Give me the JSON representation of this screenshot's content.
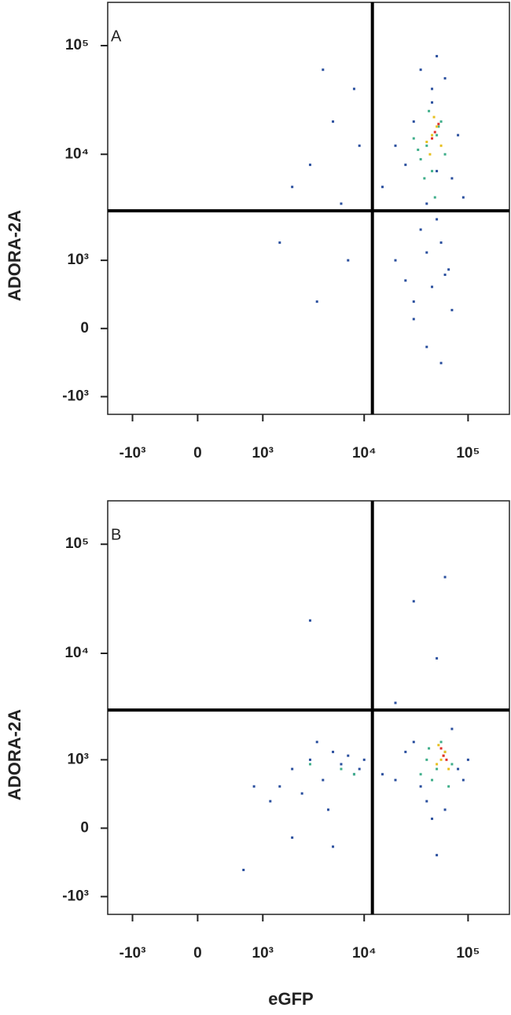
{
  "chart_data": [
    {
      "type": "scatter",
      "panel_label": "A",
      "ylabel": "ADORA-2A",
      "scale": "biexponential",
      "xlim": [
        -1800,
        250000
      ],
      "ylim": [
        -1500,
        250000
      ],
      "xticks": [
        {
          "value": -1000,
          "label": "-10³"
        },
        0,
        {
          "value": 1000,
          "label": "10³"
        },
        {
          "value": 10000,
          "label": "10⁴"
        },
        {
          "value": 100000,
          "label": "10⁵"
        }
      ],
      "yticks": [
        {
          "value": -1000,
          "label": "-10³"
        },
        0,
        {
          "value": 1000,
          "label": "10³"
        },
        {
          "value": 10000,
          "label": "10⁴"
        },
        {
          "value": 100000,
          "label": "10⁵"
        }
      ],
      "gate": {
        "x": 12000,
        "y": 3000
      },
      "series": [
        {
          "color": "#2a4f9e",
          "x": [
            45000,
            60000,
            30000,
            80000,
            25000,
            50000,
            70000,
            40000,
            35000,
            55000,
            20000,
            90000,
            15000,
            65000,
            45000,
            30000,
            50000,
            40000,
            25000,
            70000,
            5000,
            3000,
            8000,
            2000,
            6000,
            4000,
            9000,
            1500,
            7000,
            3500,
            40000,
            55000,
            30000,
            60000,
            45000,
            35000,
            20000,
            50000
          ],
          "y": [
            30000,
            50000,
            20000,
            15000,
            8000,
            80000,
            6000,
            3500,
            2000,
            1500,
            1000,
            4000,
            5000,
            800,
            500,
            300,
            2500,
            1200,
            600,
            200,
            20000,
            8000,
            40000,
            5000,
            3500,
            60000,
            12000,
            1500,
            1000,
            300,
            -200,
            -400,
            100,
            700,
            40000,
            60000,
            12000,
            7000
          ]
        },
        {
          "color": "#3fae8a",
          "x": [
            40000,
            50000,
            35000,
            60000,
            45000,
            30000,
            55000,
            42000,
            38000,
            48000,
            52000,
            33000
          ],
          "y": [
            12000,
            15000,
            9000,
            10000,
            7000,
            14000,
            20000,
            25000,
            6000,
            4000,
            18000,
            11000
          ]
        },
        {
          "color": "#e8c020",
          "x": [
            45000,
            50000,
            40000,
            55000,
            47000,
            43000
          ],
          "y": [
            15000,
            18000,
            13000,
            12000,
            22000,
            10000
          ]
        },
        {
          "color": "#e0302a",
          "x": [
            48000,
            45000,
            52000
          ],
          "y": [
            16000,
            14000,
            19000
          ]
        }
      ]
    },
    {
      "type": "scatter",
      "panel_label": "B",
      "ylabel": "ADORA-2A",
      "xlabel": "eGFP",
      "scale": "biexponential",
      "xlim": [
        -1800,
        250000
      ],
      "ylim": [
        -1500,
        250000
      ],
      "xticks": [
        {
          "value": -1000,
          "label": "-10³"
        },
        0,
        {
          "value": 1000,
          "label": "10³"
        },
        {
          "value": 10000,
          "label": "10⁴"
        },
        {
          "value": 100000,
          "label": "10⁵"
        }
      ],
      "yticks": [
        {
          "value": -1000,
          "label": "-10³"
        },
        0,
        {
          "value": 1000,
          "label": "10³"
        },
        {
          "value": 10000,
          "label": "10⁴"
        },
        {
          "value": 100000,
          "label": "10⁵"
        }
      ],
      "gate": {
        "x": 12000,
        "y": 3000
      },
      "series": [
        {
          "color": "#2a4f9e",
          "x": [
            2000,
            3000,
            4000,
            5000,
            6000,
            8000,
            1500,
            2500,
            3500,
            7000,
            9000,
            1200,
            4500,
            10000,
            12000,
            15000,
            20000,
            25000,
            30000,
            80000,
            100000,
            90000,
            70000,
            40000,
            35000,
            60000,
            50000,
            45000,
            2000,
            5000,
            800,
            600,
            20000,
            60000,
            30000,
            50000,
            3000,
            70000
          ],
          "y": [
            800,
            1000,
            600,
            1200,
            900,
            700,
            500,
            400,
            1500,
            1100,
            800,
            300,
            200,
            1000,
            900,
            700,
            600,
            1200,
            1500,
            800,
            1000,
            600,
            2000,
            300,
            500,
            200,
            -300,
            100,
            -100,
            -200,
            500,
            -500,
            3500,
            50000,
            30000,
            9000,
            20000,
            3000
          ]
        },
        {
          "color": "#3fae8a",
          "x": [
            40000,
            50000,
            60000,
            45000,
            55000,
            70000,
            35000,
            65000,
            6000,
            3000,
            8000,
            42000
          ],
          "y": [
            1000,
            800,
            1200,
            600,
            1500,
            900,
            700,
            500,
            800,
            900,
            700,
            1300
          ]
        },
        {
          "color": "#e8c020",
          "x": [
            55000,
            60000,
            50000,
            65000,
            58000,
            52000
          ],
          "y": [
            1000,
            1200,
            900,
            800,
            1100,
            1400
          ]
        },
        {
          "color": "#e0302a",
          "x": [
            58000,
            62000,
            55000
          ],
          "y": [
            1100,
            1000,
            1300
          ]
        }
      ]
    }
  ]
}
